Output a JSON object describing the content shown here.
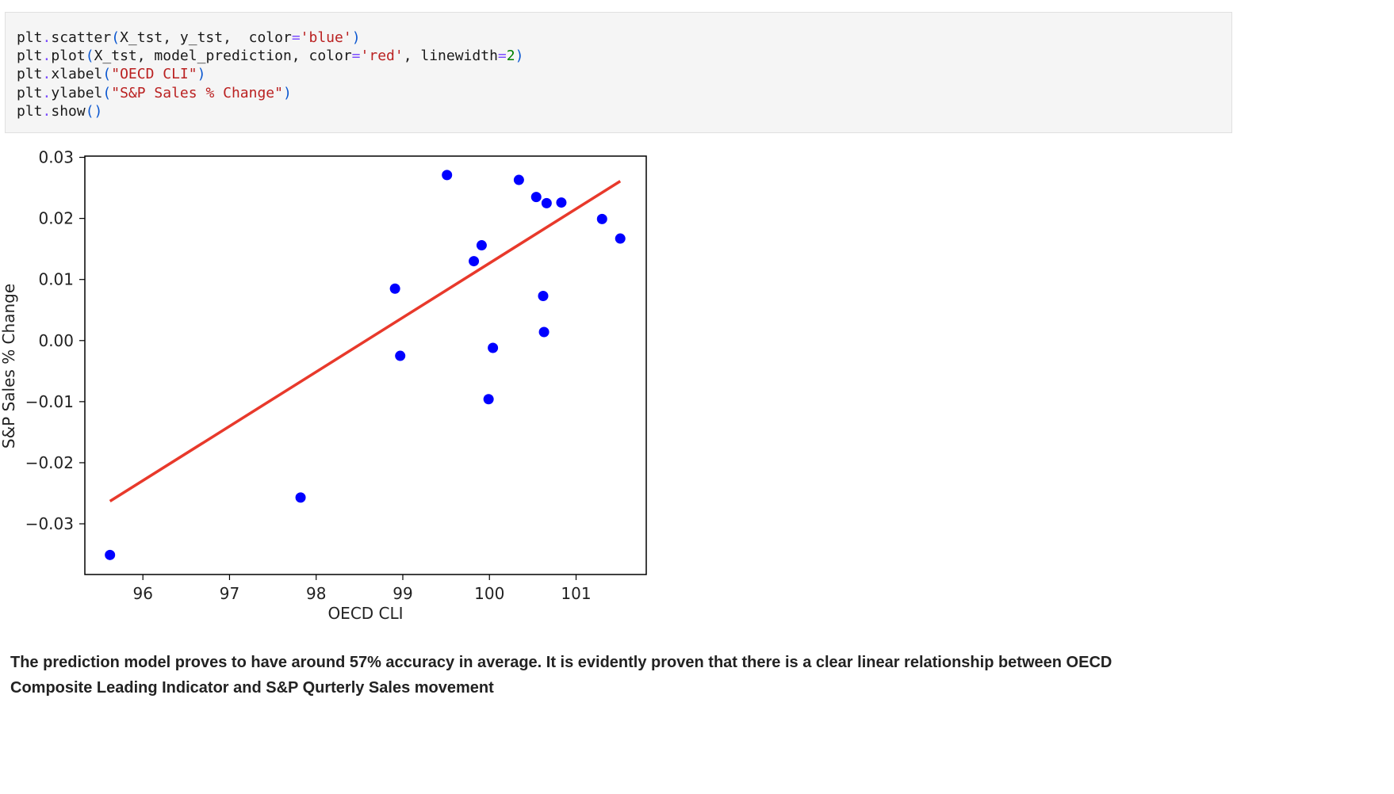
{
  "code_cell": {
    "lines": [
      [
        {
          "t": "plt"
        },
        {
          "t": ".",
          "c": "op"
        },
        {
          "t": "scatter"
        },
        {
          "t": "(",
          "c": "paren"
        },
        {
          "t": "X_tst, y_tst,  color"
        },
        {
          "t": "=",
          "c": "op"
        },
        {
          "t": "'blue'",
          "c": "str"
        },
        {
          "t": ")",
          "c": "paren"
        }
      ],
      [
        {
          "t": "plt"
        },
        {
          "t": ".",
          "c": "op"
        },
        {
          "t": "plot"
        },
        {
          "t": "(",
          "c": "paren"
        },
        {
          "t": "X_tst, model_prediction, color"
        },
        {
          "t": "=",
          "c": "op"
        },
        {
          "t": "'red'",
          "c": "str"
        },
        {
          "t": ", linewidth"
        },
        {
          "t": "=",
          "c": "op"
        },
        {
          "t": "2",
          "c": "num"
        },
        {
          "t": ")",
          "c": "paren"
        }
      ],
      [
        {
          "t": "plt"
        },
        {
          "t": ".",
          "c": "op"
        },
        {
          "t": "xlabel"
        },
        {
          "t": "(",
          "c": "paren"
        },
        {
          "t": "\"OECD CLI\"",
          "c": "str"
        },
        {
          "t": ")",
          "c": "paren"
        }
      ],
      [
        {
          "t": "plt"
        },
        {
          "t": ".",
          "c": "op"
        },
        {
          "t": "ylabel"
        },
        {
          "t": "(",
          "c": "paren"
        },
        {
          "t": "\"S&P Sales % Change\"",
          "c": "str"
        },
        {
          "t": ")",
          "c": "paren"
        }
      ],
      [
        {
          "t": "plt"
        },
        {
          "t": ".",
          "c": "op"
        },
        {
          "t": "show"
        },
        {
          "t": "()",
          "c": "paren"
        }
      ]
    ]
  },
  "chart_data": {
    "type": "scatter",
    "title": "",
    "xlabel": "OECD CLI",
    "ylabel": "S&P Sales % Change",
    "xlim": [
      95.33,
      101.81
    ],
    "ylim": [
      -0.0383,
      0.0302
    ],
    "xticks": [
      96,
      97,
      98,
      99,
      100,
      101
    ],
    "xtick_labels": [
      "96",
      "97",
      "98",
      "99",
      "100",
      "101"
    ],
    "yticks": [
      -0.03,
      -0.02,
      -0.01,
      0.0,
      0.01,
      0.02,
      0.03
    ],
    "ytick_labels": [
      "−0.03",
      "−0.02",
      "−0.01",
      "0.00",
      "0.01",
      "0.02",
      "0.03"
    ],
    "grid": false,
    "legend": "none",
    "series": [
      {
        "kind": "scatter",
        "color": "#0000ff",
        "points": [
          [
            95.62,
            -0.0351
          ],
          [
            97.82,
            -0.0257
          ],
          [
            98.91,
            0.0085
          ],
          [
            98.97,
            -0.0025
          ],
          [
            99.51,
            0.0271
          ],
          [
            99.82,
            0.013
          ],
          [
            99.91,
            0.0156
          ],
          [
            99.99,
            -0.0096
          ],
          [
            100.04,
            -0.0012
          ],
          [
            100.34,
            0.0263
          ],
          [
            100.54,
            0.0235
          ],
          [
            100.62,
            0.0073
          ],
          [
            100.63,
            0.0014
          ],
          [
            100.66,
            0.0225
          ],
          [
            100.83,
            0.0226
          ],
          [
            101.3,
            0.0199
          ],
          [
            101.51,
            0.0167
          ]
        ]
      },
      {
        "kind": "line",
        "color": "#e8392b",
        "points": [
          [
            95.62,
            -0.0263
          ],
          [
            101.51,
            0.0261
          ]
        ]
      }
    ]
  },
  "narrative": {
    "text": "The prediction model proves to have around 57% accuracy in average. It is evidently proven that there is a clear linear relationship between OECD Composite Leading Indicator and S&P Qurterly Sales movement"
  }
}
